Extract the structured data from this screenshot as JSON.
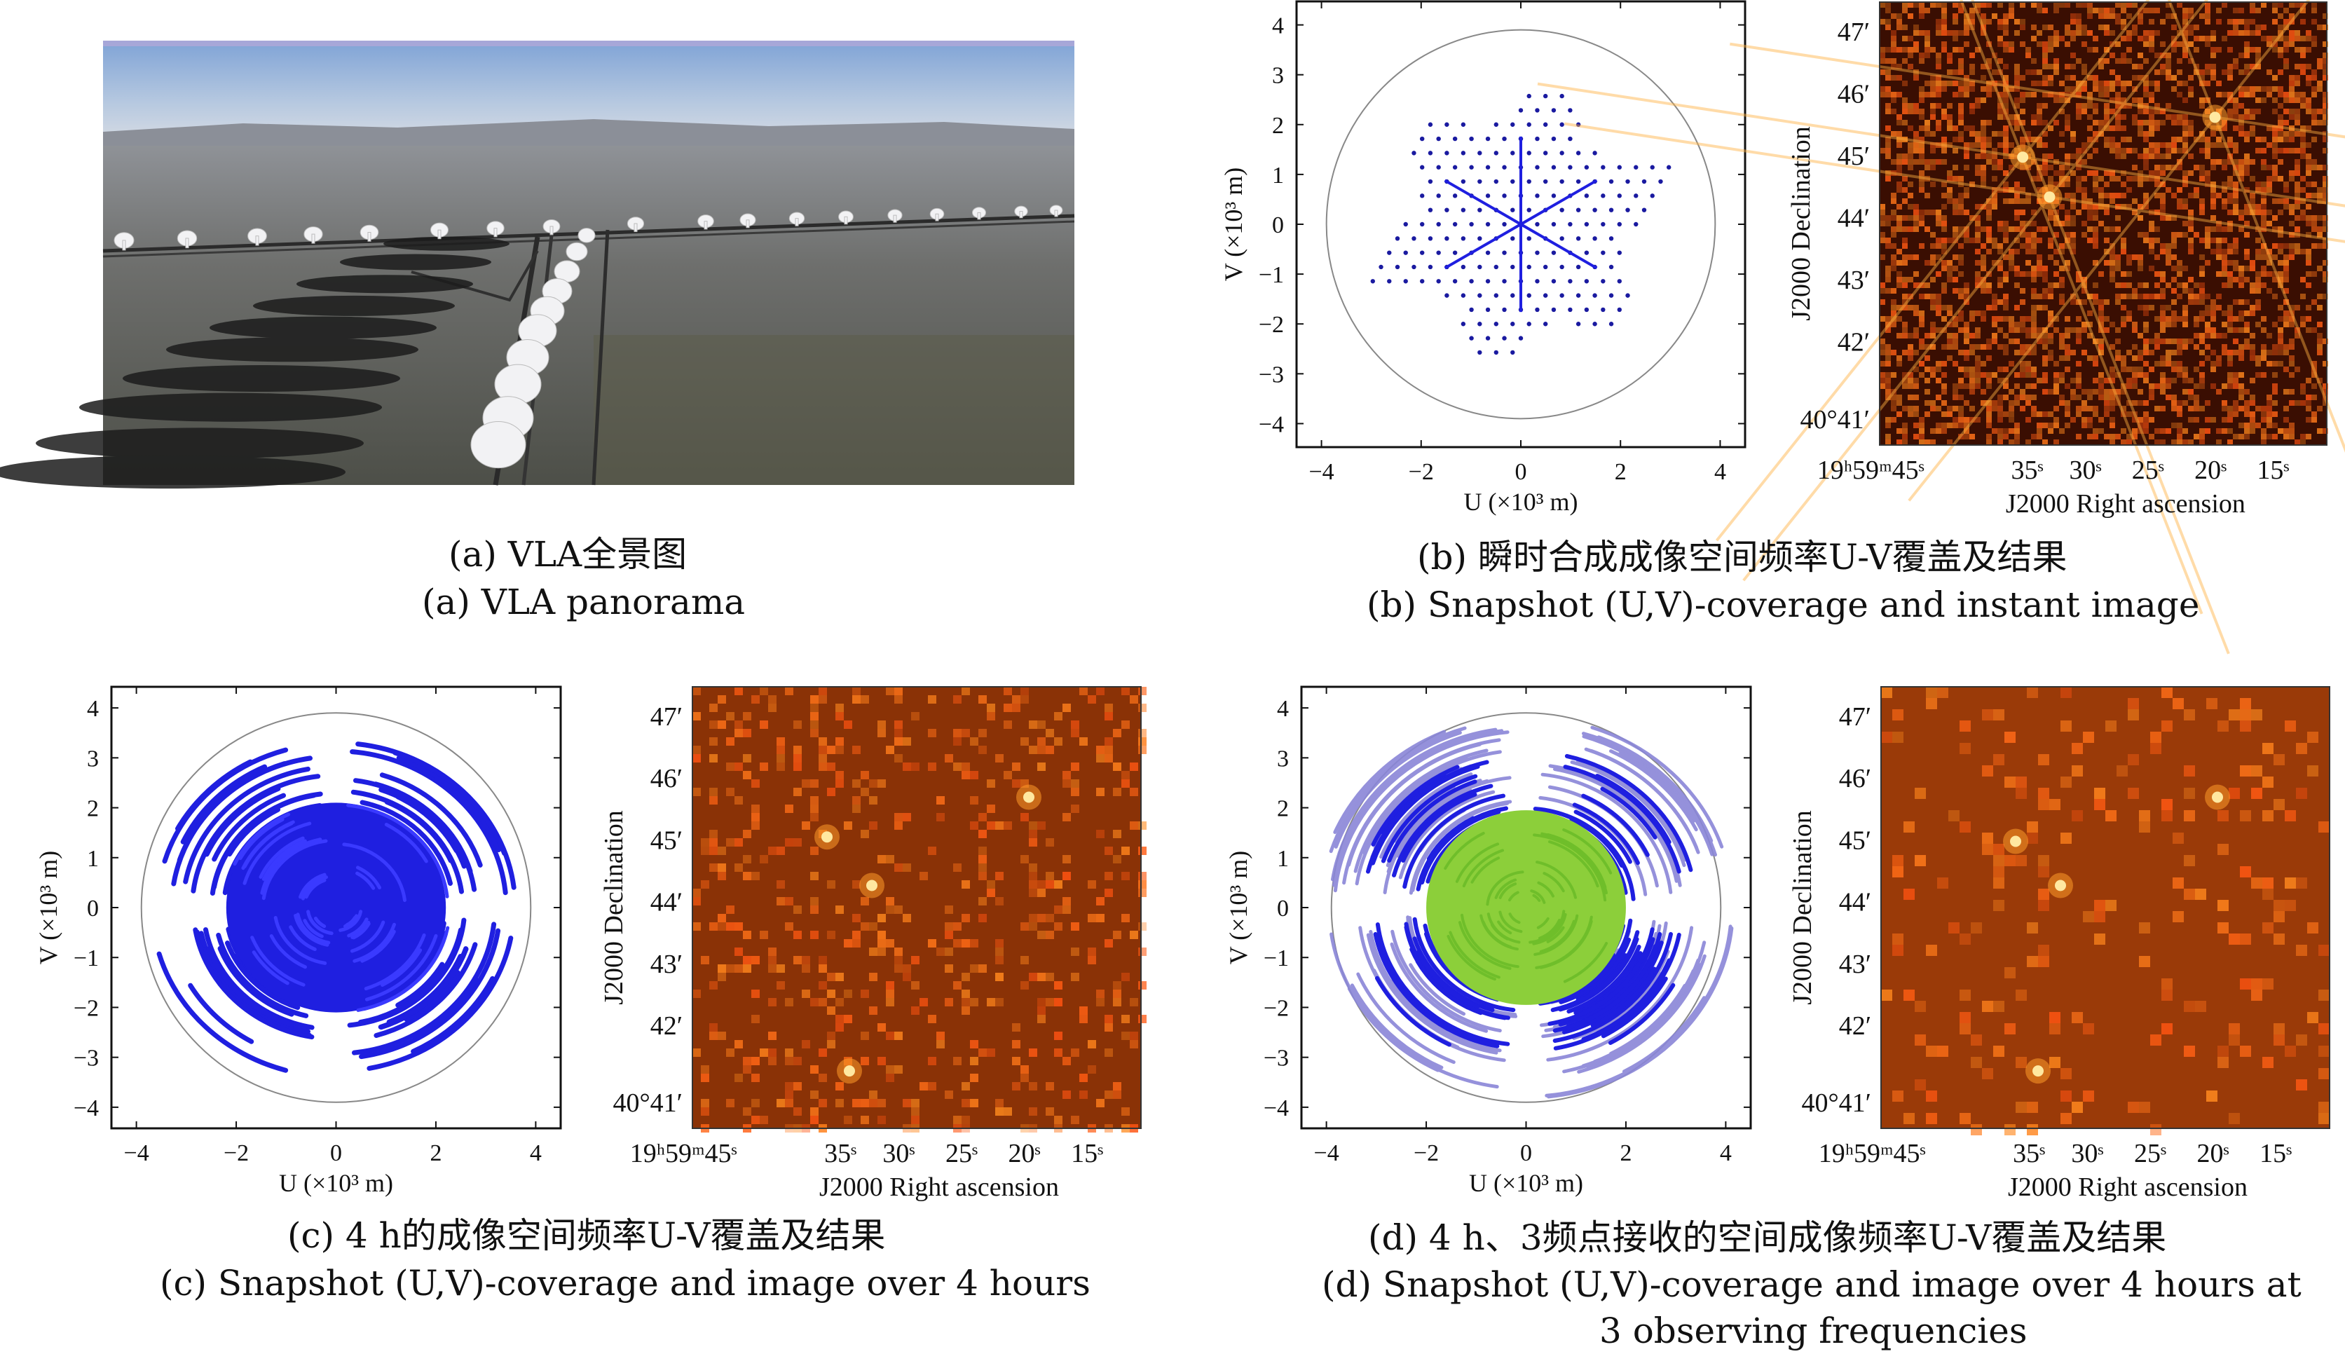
{
  "panels": {
    "a": {
      "caption_cn": "(a) VLA全景图",
      "caption_en": "(a) VLA panorama"
    },
    "b": {
      "caption_cn": "(b) 瞬时合成成像空间频率U-V覆盖及结果",
      "caption_en": "(b) Snapshot (U,V)-coverage and instant image"
    },
    "c": {
      "caption_cn": "(c) 4 h的成像空间频率U-V覆盖及结果",
      "caption_en": "(c) Snapshot (U,V)-coverage and image over 4 hours"
    },
    "d": {
      "caption_cn": "(d) 4 h、3频点接收的空间成像频率U-V覆盖及结果",
      "caption_en_line1": "(d) Snapshot (U,V)-coverage and image over 4 hours at",
      "caption_en_line2": "3 observing frequencies"
    }
  },
  "uv_axes": {
    "xlabel": "U (×10³ m)",
    "ylabel": "V (×10³ m)",
    "ticks": [
      "-4",
      "-2",
      "0",
      "2",
      "4"
    ],
    "yticks": [
      "4",
      "3",
      "2",
      "1",
      "0",
      "-1",
      "-2",
      "-3",
      "-4"
    ]
  },
  "sky_axes": {
    "xlabel": "J2000 Right ascension",
    "ylabel": "J2000 Declination",
    "xticks": [
      "19ʰ59ᵐ45ˢ",
      "35ˢ",
      "30ˢ",
      "25ˢ",
      "20ˢ",
      "15ˢ"
    ],
    "yticks": [
      "47′",
      "46′",
      "45′",
      "44′",
      "43′",
      "42′",
      "40°41′"
    ]
  },
  "colors": {
    "uv_blue": "#1f1fe0",
    "uv_green": "#8ccf3a",
    "uv_lavender": "#8a86d8",
    "sky_dark": "#7a2a06",
    "sky_bright": "#ff9a2a"
  },
  "chart_data": [
    {
      "type": "scatter",
      "panel": "b-left",
      "xlabel": "U (×10³ m)",
      "ylabel": "V (×10³ m)",
      "xlim": [
        -4.5,
        4.5
      ],
      "ylim": [
        -4.5,
        4.5
      ],
      "arm_angles_deg": [
        90,
        210,
        330
      ],
      "max_radius": 3.2,
      "boundary_radius": 3.9
    },
    {
      "type": "line",
      "panel": "c-left",
      "xlabel": "U (×10³ m)",
      "ylabel": "V (×10³ m)",
      "xlim": [
        -4.5,
        4.5
      ],
      "ylim": [
        -4.5,
        4.5
      ],
      "max_radius": 3.7,
      "boundary_radius": 3.9
    },
    {
      "type": "line",
      "panel": "d-left",
      "xlabel": "U (×10³ m)",
      "ylabel": "V (×10³ m)",
      "xlim": [
        -4.5,
        4.5
      ],
      "ylim": [
        -4.5,
        4.5
      ],
      "max_radius": 4.2,
      "boundary_radius": 3.9
    },
    {
      "type": "heatmap",
      "panel": "b-right",
      "xlabel": "J2000 Right ascension",
      "ylabel": "J2000 Declination",
      "sources": [
        [
          0.32,
          0.35
        ],
        [
          0.38,
          0.44
        ],
        [
          0.75,
          0.26
        ]
      ]
    },
    {
      "type": "heatmap",
      "panel": "c-right",
      "xlabel": "J2000 Right ascension",
      "ylabel": "J2000 Declination",
      "sources": [
        [
          0.3,
          0.34
        ],
        [
          0.4,
          0.45
        ],
        [
          0.75,
          0.25
        ],
        [
          0.35,
          0.87
        ]
      ]
    },
    {
      "type": "heatmap",
      "panel": "d-right",
      "xlabel": "J2000 Right ascension",
      "ylabel": "J2000 Declination",
      "sources": [
        [
          0.3,
          0.35
        ],
        [
          0.4,
          0.45
        ],
        [
          0.75,
          0.25
        ],
        [
          0.35,
          0.87
        ]
      ]
    }
  ]
}
